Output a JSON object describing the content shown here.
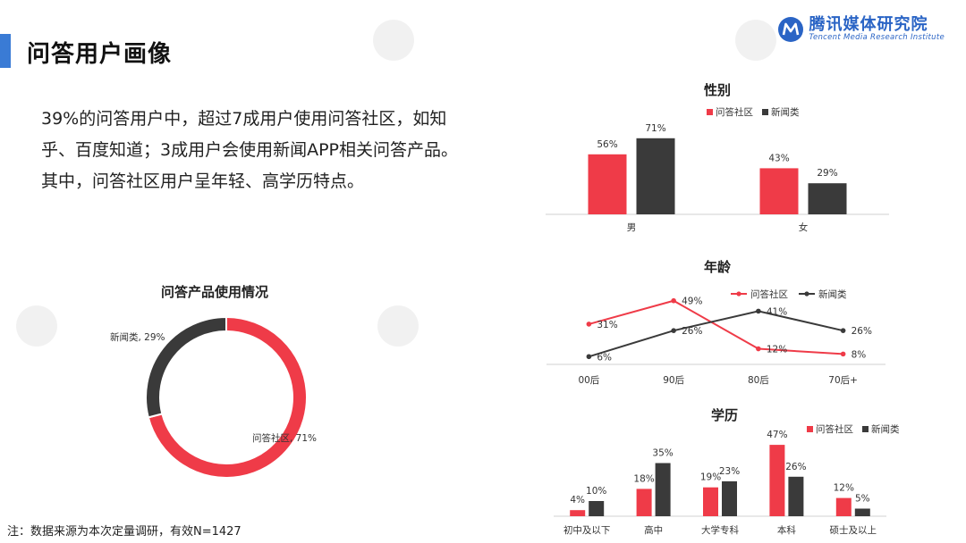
{
  "header": {
    "title": "问答用户画像",
    "brand_cn": "腾讯媒体研究院",
    "brand_en": "Tencent Media Research Institute"
  },
  "colors": {
    "accent": "#3a7bd5",
    "community": "#ef3b48",
    "news": "#3a3a3a",
    "axis": "#d0d0d0"
  },
  "summary": {
    "p1": "39%的问答用户中，超过7成用户使用问答社区，如知乎、百度知道；3成用户会使用新闻APP相关问答产品。",
    "p2": "其中，问答社区用户呈年轻、高学历特点。"
  },
  "footnote": "注：数据来源为本次定量调研，有效N=1427",
  "chart_data": [
    {
      "id": "usage",
      "type": "pie",
      "title": "问答产品使用情况",
      "donut": true,
      "slices": [
        {
          "name": "问答社区",
          "value": 71,
          "label": "问答社区, 71%"
        },
        {
          "name": "新闻类",
          "value": 29,
          "label": "新闻类, 29%"
        }
      ]
    },
    {
      "id": "gender",
      "type": "bar",
      "title": "性别",
      "categories": [
        "男",
        "女"
      ],
      "series": [
        {
          "name": "问答社区",
          "values": [
            56,
            43
          ],
          "labels": [
            "56%",
            "43%"
          ]
        },
        {
          "name": "新闻类",
          "values": [
            71,
            29
          ],
          "labels": [
            "71%",
            "29%"
          ]
        }
      ],
      "ylim": [
        0,
        80
      ],
      "legend": "top-center"
    },
    {
      "id": "age",
      "type": "line",
      "title": "年龄",
      "categories": [
        "00后",
        "90后",
        "80后",
        "70后+"
      ],
      "series": [
        {
          "name": "问答社区",
          "values": [
            31,
            49,
            12,
            8
          ],
          "labels": [
            "31%",
            "49%",
            "12%",
            "8%"
          ]
        },
        {
          "name": "新闻类",
          "values": [
            6,
            26,
            41,
            26
          ],
          "labels": [
            "6%",
            "26%",
            "41%",
            "26%"
          ]
        }
      ],
      "ylim": [
        0,
        55
      ],
      "legend": "top-right"
    },
    {
      "id": "edu",
      "type": "bar",
      "title": "学历",
      "categories": [
        "初中及以下",
        "高中",
        "大学专科",
        "本科",
        "硕士及以上"
      ],
      "series": [
        {
          "name": "问答社区",
          "values": [
            4,
            18,
            19,
            47,
            12
          ],
          "labels": [
            "4%",
            "18%",
            "19%",
            "47%",
            "12%"
          ]
        },
        {
          "name": "新闻类",
          "values": [
            10,
            35,
            23,
            26,
            5
          ],
          "labels": [
            "10%",
            "35%",
            "23%",
            "26%",
            "5%"
          ]
        }
      ],
      "ylim": [
        0,
        50
      ],
      "legend": "top-right"
    }
  ]
}
